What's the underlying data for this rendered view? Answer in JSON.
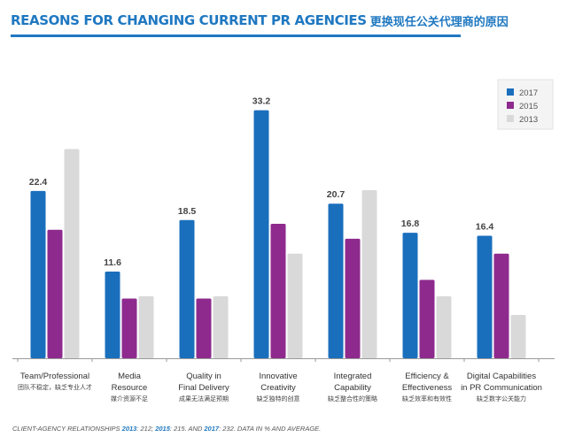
{
  "header": {
    "title_en": "REASONS FOR CHANGING CURRENT PR AGENCIES",
    "title_cn": "更换现任公关代理商的原因"
  },
  "footer": {
    "prefix": "CLIENT-AGENCY RELATIONSHIPS ",
    "y1": "2013",
    "v1": ": 212; ",
    "y2": "2015",
    "v2": ": 215. AND ",
    "y3": "2017",
    "v3": ": 232. DATA IN % AND AVERAGE."
  },
  "colors": {
    "s2017": "#1a6fbd",
    "s2015": "#8e2a8e",
    "s2013": "#d9d9d9",
    "title": "#1f78c1"
  },
  "chart_data": {
    "type": "bar",
    "title": "",
    "xlabel": "",
    "ylabel": "",
    "ylim": [
      0,
      36
    ],
    "grid": false,
    "legend": "top-right",
    "categories": [
      {
        "en1": "Team/Professional",
        "en2": "",
        "cn": "团队不稳定，缺乏专业人才"
      },
      {
        "en1": "Media",
        "en2": "Resource",
        "cn": "媒介资源不足"
      },
      {
        "en1": "Quality in",
        "en2": "Final Delivery",
        "cn": "成果无法满足预期"
      },
      {
        "en1": "Innovative",
        "en2": "Creativity",
        "cn": "缺乏独特的创意"
      },
      {
        "en1": "Integrated",
        "en2": "Capability",
        "cn": "缺乏整合性的策略"
      },
      {
        "en1": "Efficiency &",
        "en2": "Effectiveness",
        "cn": "缺乏效率和有效性"
      },
      {
        "en1": "Digital Capabilities",
        "en2": "in PR Communication",
        "cn": "缺乏数字公关能力"
      }
    ],
    "series": [
      {
        "name": "2017",
        "values": [
          22.4,
          11.6,
          18.5,
          33.2,
          20.7,
          16.8,
          16.4
        ],
        "labels": [
          "22.4",
          "11.6",
          "18.5",
          "33.2",
          "20.7",
          "16.8",
          "16.4"
        ]
      },
      {
        "name": "2015",
        "values": [
          17.2,
          8.0,
          8.0,
          18.0,
          16.0,
          10.5,
          14.0
        ]
      },
      {
        "name": "2013",
        "values": [
          28.0,
          8.3,
          8.3,
          14.0,
          22.5,
          8.3,
          5.8
        ]
      }
    ]
  }
}
